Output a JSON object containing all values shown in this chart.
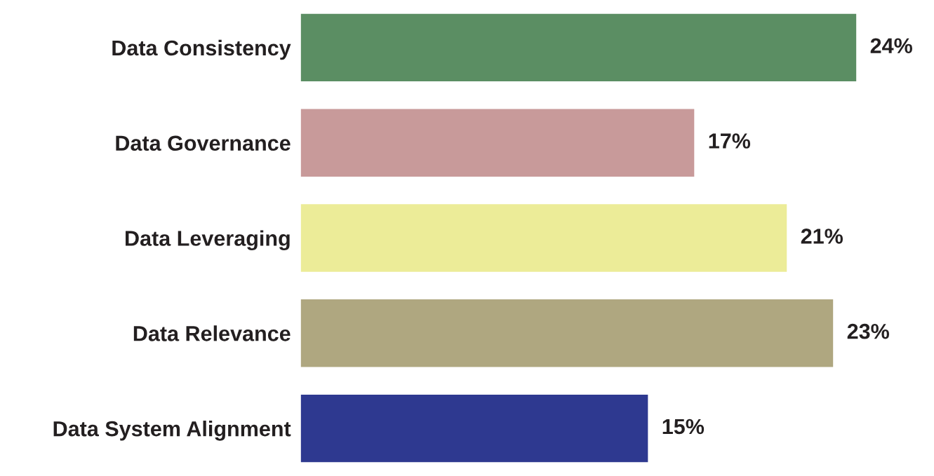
{
  "chart_data": {
    "type": "bar",
    "orientation": "horizontal",
    "categories": [
      "Data Consistency",
      "Data Governance",
      "Data Leveraging",
      "Data Relevance",
      "Data System Alignment"
    ],
    "values": [
      24,
      17,
      21,
      23,
      15
    ],
    "colors": [
      "#5b8e63",
      "#c89a9a",
      "#ecec98",
      "#afa780",
      "#2e3990"
    ],
    "value_labels": [
      "24%",
      "17%",
      "21%",
      "23%",
      "15%"
    ],
    "grid": false,
    "legend": false
  }
}
